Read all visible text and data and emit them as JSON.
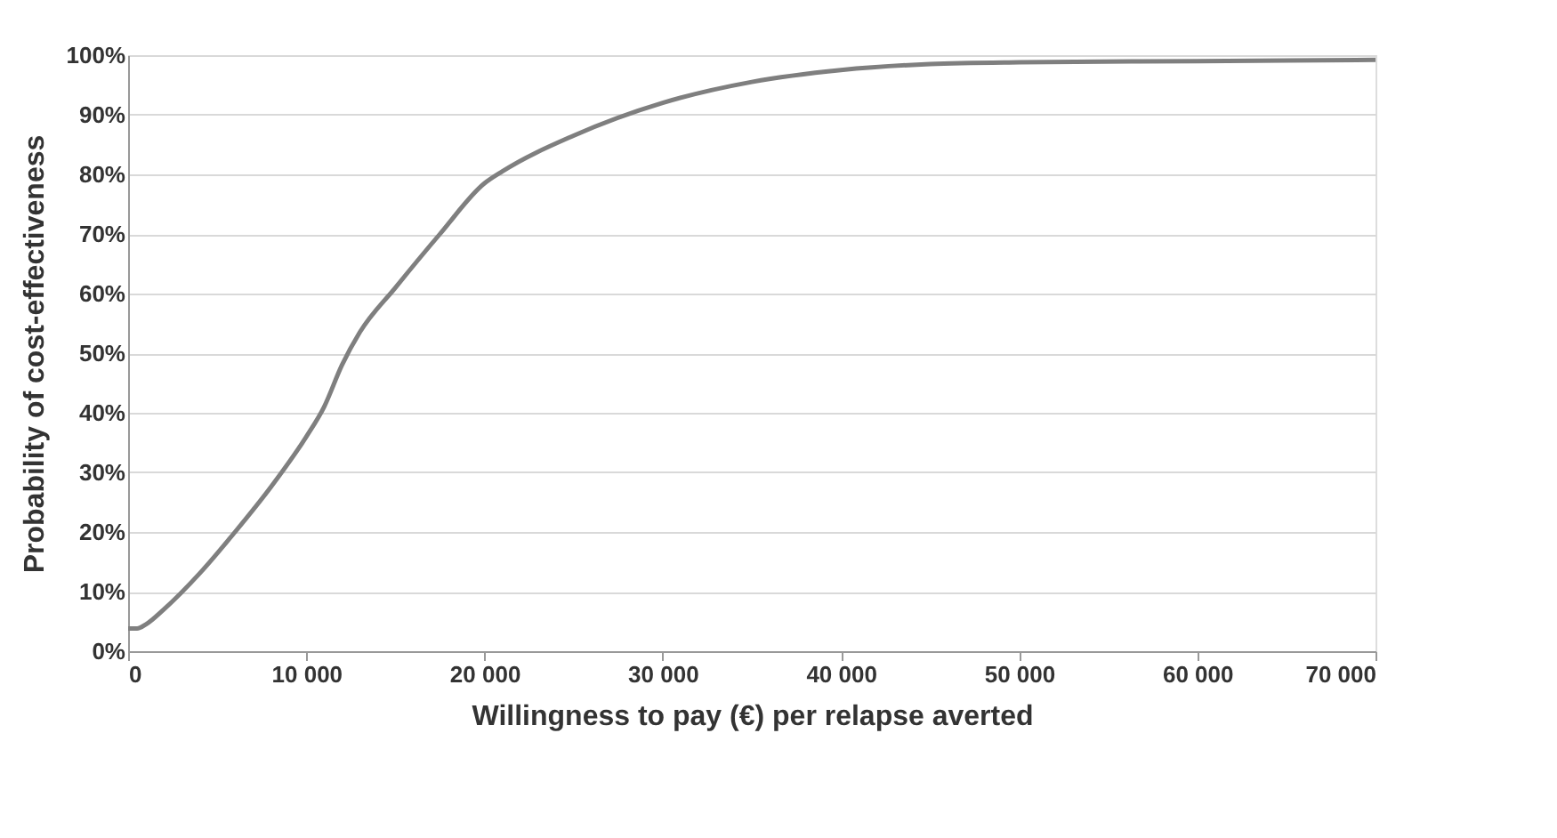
{
  "chart_data": {
    "type": "line",
    "xlabel": "Willingness to pay (€) per relapse averted",
    "ylabel": "Probability of cost-effectiveness",
    "x": [
      0,
      500,
      1000,
      2000,
      4000,
      6000,
      8000,
      10000,
      11000,
      12000,
      13000,
      15000,
      17500,
      20000,
      21000,
      25000,
      30000,
      35000,
      40000,
      45000,
      50000,
      60000,
      70000
    ],
    "series": [
      {
        "color": "#7f7f7f",
        "values": [
          3.8,
          3.8,
          4.5,
          7,
          13,
          20,
          27.5,
          36,
          41,
          48,
          53.5,
          61,
          70,
          78.5,
          80.5,
          86.5,
          92,
          95.5,
          97.5,
          98.5,
          98.8,
          99,
          99.2
        ]
      }
    ],
    "xlim": [
      0,
      70000
    ],
    "ylim": [
      0,
      100
    ],
    "xticks": [
      0,
      {
        "value": 10000,
        "label": "10 000"
      },
      {
        "value": 20000,
        "label": "20 000"
      },
      {
        "value": 30000,
        "label": "30 000"
      },
      {
        "value": 40000,
        "label": "40 000"
      },
      {
        "value": 50000,
        "label": "50 000"
      },
      {
        "value": 60000,
        "label": "60 000"
      },
      {
        "value": 70000,
        "label": "70 000"
      }
    ],
    "yticks": [
      {
        "value": 0,
        "label": "0%"
      },
      {
        "value": 10,
        "label": "10%"
      },
      {
        "value": 20,
        "label": "20%"
      },
      {
        "value": 30,
        "label": "30%"
      },
      {
        "value": 40,
        "label": "40%"
      },
      {
        "value": 50,
        "label": "50%"
      },
      {
        "value": 60,
        "label": "60%"
      },
      {
        "value": 70,
        "label": "70%"
      },
      {
        "value": 80,
        "label": "80%"
      },
      {
        "value": 90,
        "label": "90%"
      },
      {
        "value": 100,
        "label": "100%"
      }
    ],
    "grid": "y",
    "marker": "none",
    "line_style": "solid"
  }
}
